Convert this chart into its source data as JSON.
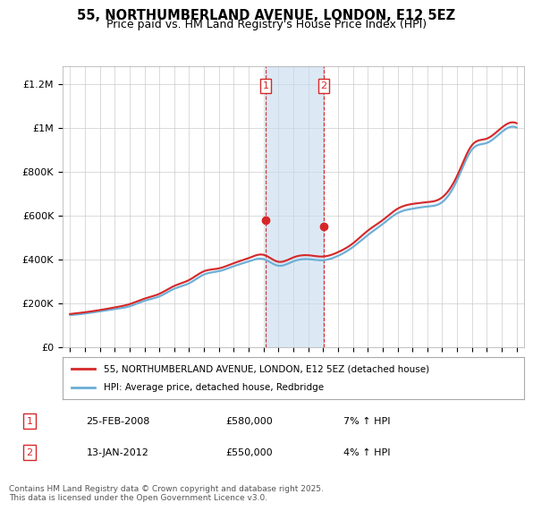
{
  "title": "55, NORTHUMBERLAND AVENUE, LONDON, E12 5EZ",
  "subtitle": "Price paid vs. HM Land Registry's House Price Index (HPI)",
  "legend_line1": "55, NORTHUMBERLAND AVENUE, LONDON, E12 5EZ (detached house)",
  "legend_line2": "HPI: Average price, detached house, Redbridge",
  "sale1_label": "1",
  "sale1_date": "25-FEB-2008",
  "sale1_price": "£580,000",
  "sale1_hpi": "7% ↑ HPI",
  "sale1_year": 2008.13,
  "sale2_label": "2",
  "sale2_date": "13-JAN-2012",
  "sale2_price": "£550,000",
  "sale2_hpi": "4% ↑ HPI",
  "sale2_year": 2012.04,
  "footer": "Contains HM Land Registry data © Crown copyright and database right 2025.\nThis data is licensed under the Open Government Licence v3.0.",
  "hpi_color": "#6baed6",
  "price_color": "#d62728",
  "shade_color": "#c6dbef",
  "background_color": "#ffffff",
  "grid_color": "#cccccc",
  "years": [
    1995,
    1996,
    1997,
    1998,
    1999,
    2000,
    2001,
    2002,
    2003,
    2004,
    2005,
    2006,
    2007,
    2008,
    2009,
    2010,
    2011,
    2012,
    2013,
    2014,
    2015,
    2016,
    2017,
    2018,
    2019,
    2020,
    2021,
    2022,
    2023,
    2024,
    2025
  ],
  "hpi_values": [
    145000,
    152000,
    162000,
    172000,
    185000,
    210000,
    230000,
    265000,
    290000,
    330000,
    345000,
    368000,
    390000,
    400000,
    370000,
    390000,
    400000,
    395000,
    415000,
    455000,
    510000,
    560000,
    610000,
    630000,
    640000,
    660000,
    760000,
    900000,
    930000,
    980000,
    1000000
  ],
  "price_values": [
    150000,
    158000,
    168000,
    180000,
    195000,
    220000,
    242000,
    278000,
    305000,
    345000,
    358000,
    382000,
    405000,
    420000,
    388000,
    408000,
    418000,
    412000,
    432000,
    472000,
    530000,
    578000,
    630000,
    652000,
    660000,
    682000,
    780000,
    920000,
    950000,
    1000000,
    1020000
  ],
  "ylim": [
    0,
    1280000
  ],
  "yticks": [
    0,
    200000,
    400000,
    600000,
    800000,
    1000000,
    1200000
  ],
  "ytick_labels": [
    "£0",
    "£200K",
    "£400K",
    "£600K",
    "£800K",
    "£1M",
    "£1.2M"
  ]
}
